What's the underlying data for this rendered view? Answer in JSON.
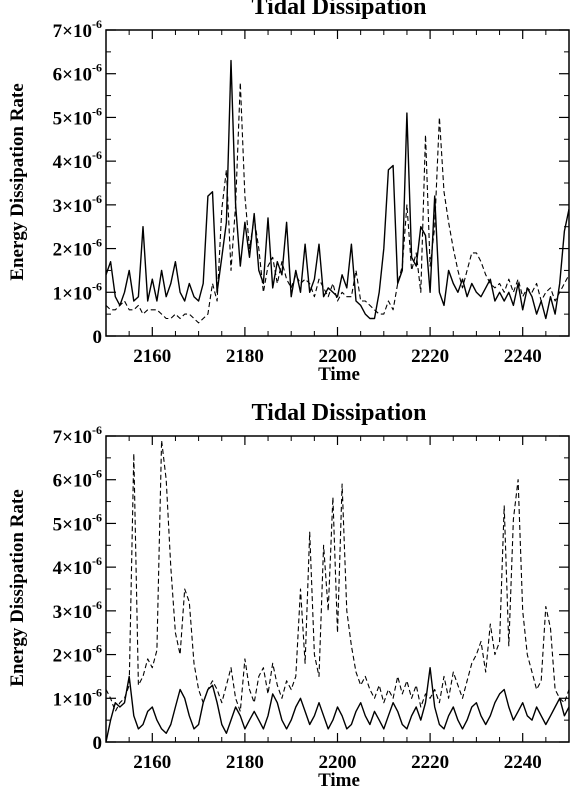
{
  "chart_data": [
    {
      "type": "line",
      "title": "Tidal Dissipation",
      "xlabel": "Time",
      "ylabel": "Energy Dissipation Rate",
      "xlim": [
        2150,
        2250
      ],
      "ylim": [
        0,
        7e-06
      ],
      "xticks": [
        2160,
        2180,
        2200,
        2220,
        2240
      ],
      "xtick_labels": [
        "2160",
        "2180",
        "2200",
        "2220",
        "2240"
      ],
      "yticks": [
        0,
        1e-06,
        2e-06,
        3e-06,
        4e-06,
        5e-06,
        6e-06,
        7e-06
      ],
      "ytick_labels": [
        {
          "mantissa": "0",
          "exp": ""
        },
        {
          "mantissa": "1×10",
          "exp": "-6"
        },
        {
          "mantissa": "2×10",
          "exp": "-6"
        },
        {
          "mantissa": "3×10",
          "exp": "-6"
        },
        {
          "mantissa": "4×10",
          "exp": "-6"
        },
        {
          "mantissa": "5×10",
          "exp": "-6"
        },
        {
          "mantissa": "6×10",
          "exp": "-6"
        },
        {
          "mantissa": "7×10",
          "exp": "-6"
        }
      ],
      "grid": false,
      "series": [
        {
          "style": "solid",
          "x": [
            2150,
            2151,
            2152,
            2153,
            2154,
            2155,
            2156,
            2157,
            2158,
            2159,
            2160,
            2161,
            2162,
            2163,
            2164,
            2165,
            2166,
            2167,
            2168,
            2169,
            2170,
            2171,
            2172,
            2173,
            2174,
            2175,
            2176,
            2177,
            2178,
            2179,
            2180,
            2181,
            2182,
            2183,
            2184,
            2185,
            2186,
            2187,
            2188,
            2189,
            2190,
            2191,
            2192,
            2193,
            2194,
            2195,
            2196,
            2197,
            2198,
            2199,
            2200,
            2201,
            2202,
            2203,
            2204,
            2205,
            2206,
            2207,
            2208,
            2209,
            2210,
            2211,
            2212,
            2213,
            2214,
            2215,
            2216,
            2217,
            2218,
            2219,
            2220,
            2221,
            2222,
            2223,
            2224,
            2225,
            2226,
            2227,
            2228,
            2229,
            2230,
            2231,
            2232,
            2233,
            2234,
            2235,
            2236,
            2237,
            2238,
            2239,
            2240,
            2241,
            2242,
            2243,
            2244,
            2245,
            2246,
            2247,
            2248,
            2249,
            2250
          ],
          "y": [
            1.4e-06,
            1.7e-06,
            9e-07,
            7e-07,
            1e-06,
            1.5e-06,
            8e-07,
            9e-07,
            2.5e-06,
            8e-07,
            1.3e-06,
            8e-07,
            1.5e-06,
            9e-07,
            1.2e-06,
            1.7e-06,
            1e-06,
            8e-07,
            1.2e-06,
            9e-07,
            8e-07,
            1.2e-06,
            3.2e-06,
            3.3e-06,
            1e-06,
            1.8e-06,
            2.6e-06,
            6.3e-06,
            3e-06,
            1.6e-06,
            2.6e-06,
            1.8e-06,
            2.8e-06,
            1.5e-06,
            1.2e-06,
            2.7e-06,
            1.1e-06,
            1.7e-06,
            1.4e-06,
            2.6e-06,
            9e-07,
            1.5e-06,
            1e-06,
            2.1e-06,
            1e-06,
            1.3e-06,
            2.1e-06,
            9e-07,
            1.1e-06,
            1e-06,
            9e-07,
            1.4e-06,
            1.1e-06,
            2.1e-06,
            8e-07,
            7e-07,
            5e-07,
            4e-07,
            4e-07,
            1e-06,
            2e-06,
            3.8e-06,
            3.9e-06,
            1.2e-06,
            1.5e-06,
            5.1e-06,
            1.8e-06,
            1.6e-06,
            2.5e-06,
            2.3e-06,
            1e-06,
            3.2e-06,
            1e-06,
            7e-07,
            1.5e-06,
            1.2e-06,
            1e-06,
            1.3e-06,
            9e-07,
            1.2e-06,
            1e-06,
            9e-07,
            1.1e-06,
            1.3e-06,
            8e-07,
            1e-06,
            8e-07,
            1e-06,
            7e-07,
            1.2e-06,
            6e-07,
            1.1e-06,
            9e-07,
            5e-07,
            8e-07,
            4e-07,
            9e-07,
            5e-07,
            1.2e-06,
            2.4e-06,
            2.9e-06
          ]
        },
        {
          "style": "dashed",
          "x": [
            2150,
            2151,
            2152,
            2153,
            2154,
            2155,
            2156,
            2157,
            2158,
            2159,
            2160,
            2161,
            2162,
            2163,
            2164,
            2165,
            2166,
            2167,
            2168,
            2169,
            2170,
            2171,
            2172,
            2173,
            2174,
            2175,
            2176,
            2177,
            2178,
            2179,
            2180,
            2181,
            2182,
            2183,
            2184,
            2185,
            2186,
            2187,
            2188,
            2189,
            2190,
            2191,
            2192,
            2193,
            2194,
            2195,
            2196,
            2197,
            2198,
            2199,
            2200,
            2201,
            2202,
            2203,
            2204,
            2205,
            2206,
            2207,
            2208,
            2209,
            2210,
            2211,
            2212,
            2213,
            2214,
            2215,
            2216,
            2217,
            2218,
            2219,
            2220,
            2221,
            2222,
            2223,
            2224,
            2225,
            2226,
            2227,
            2228,
            2229,
            2230,
            2231,
            2232,
            2233,
            2234,
            2235,
            2236,
            2237,
            2238,
            2239,
            2240,
            2241,
            2242,
            2243,
            2244,
            2245,
            2246,
            2247,
            2248,
            2249,
            2250
          ],
          "y": [
            7e-07,
            6e-07,
            6e-07,
            7e-07,
            8e-07,
            6e-07,
            6e-07,
            7e-07,
            5e-07,
            6e-07,
            6e-07,
            6e-07,
            5e-07,
            4e-07,
            4e-07,
            5e-07,
            4e-07,
            5e-07,
            5e-07,
            4e-07,
            3e-07,
            4e-07,
            5e-07,
            1.2e-06,
            8e-07,
            2.9e-06,
            3.8e-06,
            1.5e-06,
            3e-06,
            5.8e-06,
            3.2e-06,
            2e-06,
            2.7e-06,
            2e-06,
            1e-06,
            1.6e-06,
            1.8e-06,
            1.2e-06,
            1.7e-06,
            1.3e-06,
            1.1e-06,
            1.4e-06,
            1.2e-06,
            1.3e-06,
            1.2e-06,
            9e-07,
            1.3e-06,
            1.1e-06,
            9e-07,
            1.2e-06,
            8e-07,
            1e-06,
            9e-07,
            9e-07,
            1.5e-06,
            8e-07,
            8e-07,
            7e-07,
            6e-07,
            5e-07,
            5e-07,
            8e-07,
            6e-07,
            1.2e-06,
            1.6e-06,
            3e-06,
            1.5e-06,
            1.9e-06,
            1e-06,
            4.6e-06,
            1.6e-06,
            2.5e-06,
            5e-06,
            3.3e-06,
            2.6e-06,
            2e-06,
            1.5e-06,
            1.1e-06,
            1.5e-06,
            1.9e-06,
            1.9e-06,
            1.7e-06,
            1.4e-06,
            1.2e-06,
            1.1e-06,
            1.2e-06,
            1e-06,
            1.3e-06,
            1e-06,
            1.3e-06,
            9e-07,
            1.1e-06,
            1e-06,
            1.2e-06,
            8e-07,
            1e-06,
            1.1e-06,
            8e-07,
            1e-06,
            1.2e-06,
            1.4e-06
          ]
        }
      ]
    },
    {
      "type": "line",
      "title": "Tidal Dissipation",
      "xlabel": "Time",
      "ylabel": "Energy Dissipation Rate",
      "xlim": [
        2150,
        2250
      ],
      "ylim": [
        0,
        7e-06
      ],
      "xticks": [
        2160,
        2180,
        2200,
        2220,
        2240
      ],
      "xtick_labels": [
        "2160",
        "2180",
        "2200",
        "2220",
        "2240"
      ],
      "yticks": [
        0,
        1e-06,
        2e-06,
        3e-06,
        4e-06,
        5e-06,
        6e-06,
        7e-06
      ],
      "ytick_labels": [
        {
          "mantissa": "0",
          "exp": ""
        },
        {
          "mantissa": "1×10",
          "exp": "-6"
        },
        {
          "mantissa": "2×10",
          "exp": "-6"
        },
        {
          "mantissa": "3×10",
          "exp": "-6"
        },
        {
          "mantissa": "4×10",
          "exp": "-6"
        },
        {
          "mantissa": "5×10",
          "exp": "-6"
        },
        {
          "mantissa": "6×10",
          "exp": "-6"
        },
        {
          "mantissa": "7×10",
          "exp": "-6"
        }
      ],
      "grid": false,
      "series": [
        {
          "style": "solid",
          "x": [
            2150,
            2151,
            2152,
            2153,
            2154,
            2155,
            2156,
            2157,
            2158,
            2159,
            2160,
            2161,
            2162,
            2163,
            2164,
            2165,
            2166,
            2167,
            2168,
            2169,
            2170,
            2171,
            2172,
            2173,
            2174,
            2175,
            2176,
            2177,
            2178,
            2179,
            2180,
            2181,
            2182,
            2183,
            2184,
            2185,
            2186,
            2187,
            2188,
            2189,
            2190,
            2191,
            2192,
            2193,
            2194,
            2195,
            2196,
            2197,
            2198,
            2199,
            2200,
            2201,
            2202,
            2203,
            2204,
            2205,
            2206,
            2207,
            2208,
            2209,
            2210,
            2211,
            2212,
            2213,
            2214,
            2215,
            2216,
            2217,
            2218,
            2219,
            2220,
            2221,
            2222,
            2223,
            2224,
            2225,
            2226,
            2227,
            2228,
            2229,
            2230,
            2231,
            2232,
            2233,
            2234,
            2235,
            2236,
            2237,
            2238,
            2239,
            2240,
            2241,
            2242,
            2243,
            2244,
            2245,
            2246,
            2247,
            2248,
            2249,
            2250
          ],
          "y": [
            0.0,
            5e-07,
            9e-07,
            8e-07,
            9e-07,
            1.5e-06,
            6e-07,
            3e-07,
            4e-07,
            7e-07,
            8e-07,
            5e-07,
            3e-07,
            2e-07,
            4e-07,
            8e-07,
            1.2e-06,
            1e-06,
            6e-07,
            3e-07,
            4e-07,
            9e-07,
            1.2e-06,
            1.3e-06,
            9e-07,
            4e-07,
            2e-07,
            5e-07,
            8e-07,
            6e-07,
            3e-07,
            5e-07,
            7e-07,
            5e-07,
            3e-07,
            6e-07,
            1.1e-06,
            9e-07,
            5e-07,
            3e-07,
            5e-07,
            8e-07,
            1e-06,
            7e-07,
            4e-07,
            6e-07,
            9e-07,
            6e-07,
            3e-07,
            5e-07,
            8e-07,
            6e-07,
            3e-07,
            4e-07,
            7e-07,
            9e-07,
            6e-07,
            4e-07,
            7e-07,
            5e-07,
            3e-07,
            6e-07,
            9e-07,
            7e-07,
            4e-07,
            3e-07,
            6e-07,
            8e-07,
            5e-07,
            9e-07,
            1.7e-06,
            8e-07,
            4e-07,
            3e-07,
            6e-07,
            8e-07,
            5e-07,
            3e-07,
            5e-07,
            8e-07,
            9e-07,
            6e-07,
            4e-07,
            6e-07,
            9e-07,
            1.1e-06,
            1.2e-06,
            8e-07,
            5e-07,
            7e-07,
            9e-07,
            6e-07,
            5e-07,
            8e-07,
            6e-07,
            4e-07,
            6e-07,
            8e-07,
            1e-06,
            6e-07,
            8e-07
          ]
        },
        {
          "style": "dashed",
          "x": [
            2150,
            2151,
            2152,
            2153,
            2154,
            2155,
            2156,
            2157,
            2158,
            2159,
            2160,
            2161,
            2162,
            2163,
            2164,
            2165,
            2166,
            2167,
            2168,
            2169,
            2170,
            2171,
            2172,
            2173,
            2174,
            2175,
            2176,
            2177,
            2178,
            2179,
            2180,
            2181,
            2182,
            2183,
            2184,
            2185,
            2186,
            2187,
            2188,
            2189,
            2190,
            2191,
            2192,
            2193,
            2194,
            2195,
            2196,
            2197,
            2198,
            2199,
            2200,
            2201,
            2202,
            2203,
            2204,
            2205,
            2206,
            2207,
            2208,
            2209,
            2210,
            2211,
            2212,
            2213,
            2214,
            2215,
            2216,
            2217,
            2218,
            2219,
            2220,
            2221,
            2222,
            2223,
            2224,
            2225,
            2226,
            2227,
            2228,
            2229,
            2230,
            2231,
            2232,
            2233,
            2234,
            2235,
            2236,
            2237,
            2238,
            2239,
            2240,
            2241,
            2242,
            2243,
            2244,
            2245,
            2246,
            2247,
            2248,
            2249,
            2250
          ],
          "y": [
            1.2e-06,
            1e-06,
            7e-07,
            9e-07,
            1e-06,
            1.3e-06,
            6.6e-06,
            1.3e-06,
            1.5e-06,
            1.9e-06,
            1.7e-06,
            2.1e-06,
            6.9e-06,
            6e-06,
            4e-06,
            2.5e-06,
            2e-06,
            3.5e-06,
            3.2e-06,
            1.8e-06,
            1.2e-06,
            9e-07,
            1.2e-06,
            1.4e-06,
            1.2e-06,
            9e-07,
            1.3e-06,
            1.7e-06,
            1e-06,
            7e-07,
            1.9e-06,
            1.2e-06,
            9e-07,
            1.5e-06,
            1.7e-06,
            1.1e-06,
            1.8e-06,
            1.3e-06,
            1e-06,
            1.4e-06,
            1.2e-06,
            1.5e-06,
            3.5e-06,
            1.8e-06,
            4.8e-06,
            2e-06,
            1.5e-06,
            4.5e-06,
            3e-06,
            5.6e-06,
            2.5e-06,
            5.9e-06,
            3e-06,
            2.2e-06,
            1.6e-06,
            1.3e-06,
            1.5e-06,
            1.2e-06,
            1e-06,
            1.3e-06,
            9e-07,
            1.2e-06,
            1e-06,
            1.5e-06,
            1.1e-06,
            1.4e-06,
            1e-06,
            1.3e-06,
            8e-07,
            1.1e-06,
            1e-06,
            1.2e-06,
            9e-07,
            1.5e-06,
            1e-06,
            1.6e-06,
            1.3e-06,
            1e-06,
            1.4e-06,
            1.8e-06,
            2e-06,
            2.3e-06,
            1.6e-06,
            2.7e-06,
            2e-06,
            2.3e-06,
            5.4e-06,
            2.2e-06,
            5.1e-06,
            6e-06,
            3e-06,
            2e-06,
            1.6e-06,
            1.2e-06,
            1.4e-06,
            3.1e-06,
            2.6e-06,
            1.2e-06,
            1e-06,
            9e-07,
            1.2e-06
          ]
        }
      ]
    }
  ]
}
